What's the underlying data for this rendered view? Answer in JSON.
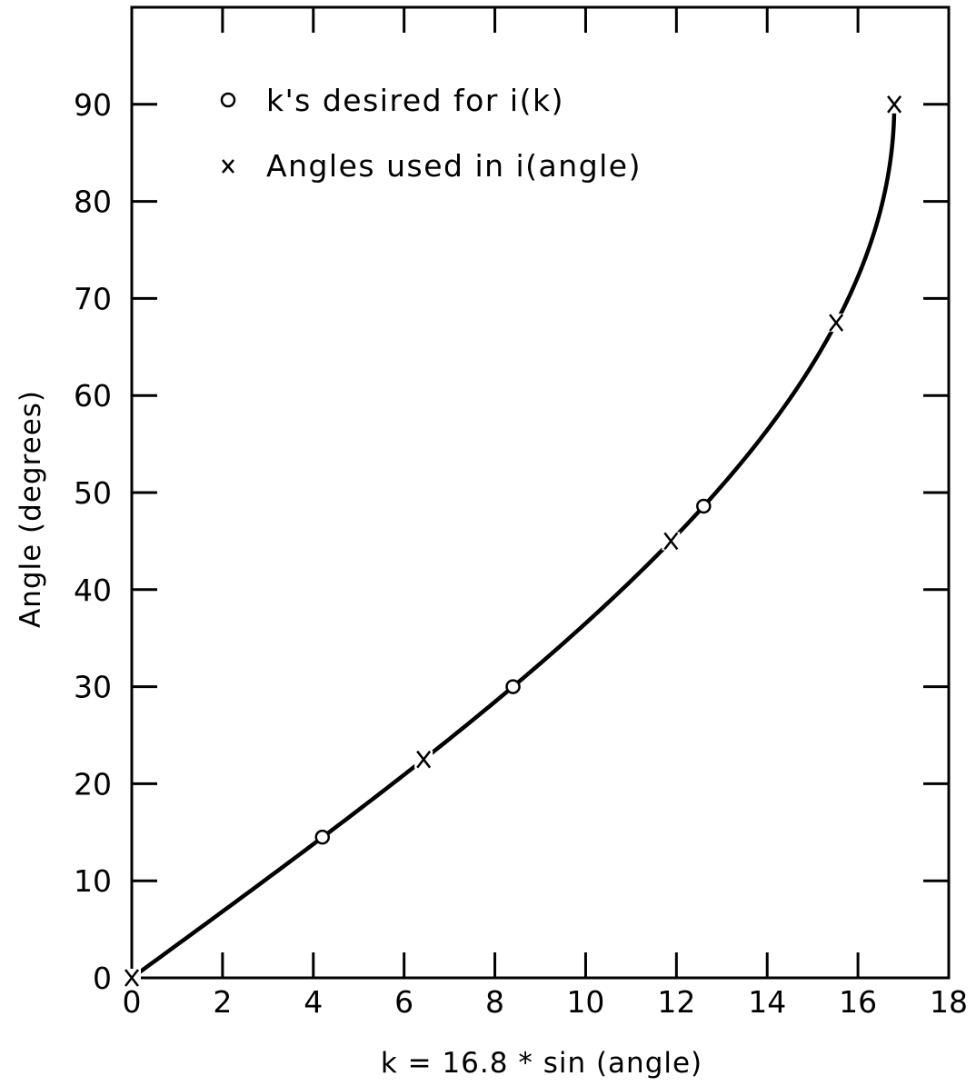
{
  "chart_data": {
    "type": "line",
    "title": "",
    "xlabel": "k = 16.8 * sin (angle)",
    "ylabel": "Angle (degrees)",
    "xlim": [
      0,
      18
    ],
    "ylim": [
      0,
      100
    ],
    "x_ticks": [
      0,
      2,
      4,
      6,
      8,
      10,
      12,
      14,
      16,
      18
    ],
    "y_ticks": [
      0,
      10,
      20,
      30,
      40,
      50,
      60,
      70,
      80,
      90
    ],
    "grid": false,
    "legend_position": "top-left",
    "curve": {
      "equation": "k = 16.8 * sin(angle)",
      "k_max": 16.8
    },
    "series": [
      {
        "name": "k's desired for i(k)",
        "marker": "circle",
        "points": [
          {
            "x": 0,
            "y": 0
          },
          {
            "x": 4.2,
            "y": 14.5
          },
          {
            "x": 8.4,
            "y": 30
          },
          {
            "x": 12.6,
            "y": 48.6
          },
          {
            "x": 16.8,
            "y": 90
          }
        ]
      },
      {
        "name": "Angles used in i(angle)",
        "marker": "x",
        "points": [
          {
            "x": 0,
            "y": 0
          },
          {
            "x": 6.43,
            "y": 22.5
          },
          {
            "x": 11.88,
            "y": 45
          },
          {
            "x": 15.52,
            "y": 67.5
          },
          {
            "x": 16.8,
            "y": 90
          }
        ]
      }
    ]
  }
}
